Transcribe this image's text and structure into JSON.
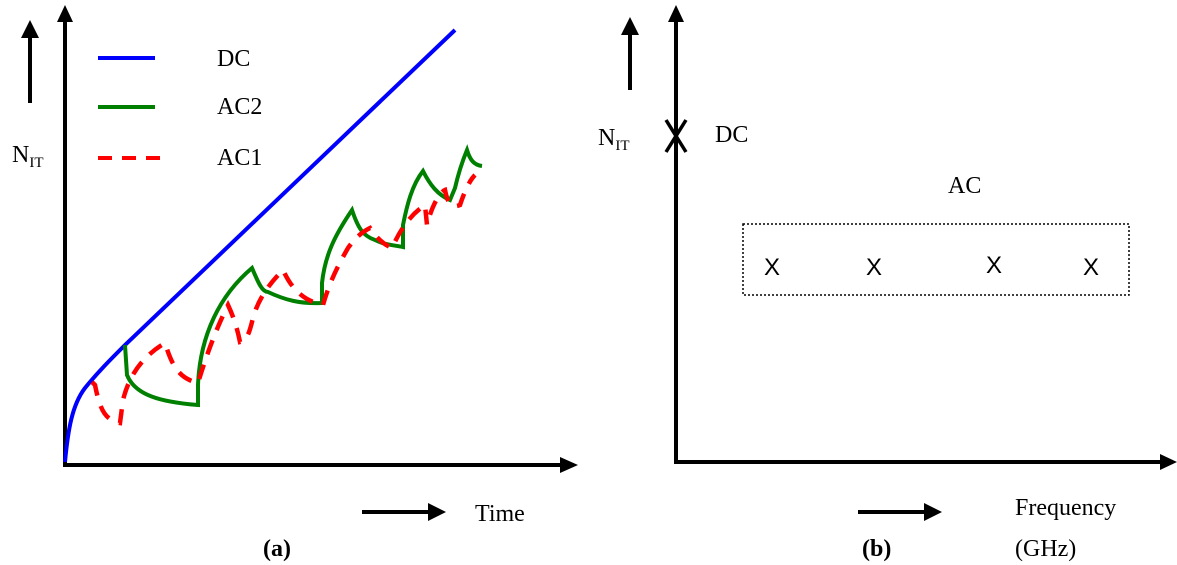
{
  "panel_a": {
    "y_label_main": "N",
    "y_label_sub": "IT",
    "x_label": "Time",
    "caption": "(a)",
    "legend": [
      {
        "label": "DC",
        "color": "#0000ff",
        "style": "solid"
      },
      {
        "label": "AC2",
        "color": "#008000",
        "style": "solid"
      },
      {
        "label": "AC1",
        "color": "#ff0000",
        "style": "dashed"
      }
    ]
  },
  "panel_b": {
    "y_label_main": "N",
    "y_label_sub": "IT",
    "dc_label": "DC",
    "ac_label": "AC",
    "x_label_line1": "Frequency",
    "x_label_line2": "(GHz)",
    "caption": "(b)",
    "marker_glyph": "X"
  },
  "colors": {
    "dc": "#0000ff",
    "ac2": "#008000",
    "ac1": "#ff0000",
    "axis": "#000000"
  }
}
